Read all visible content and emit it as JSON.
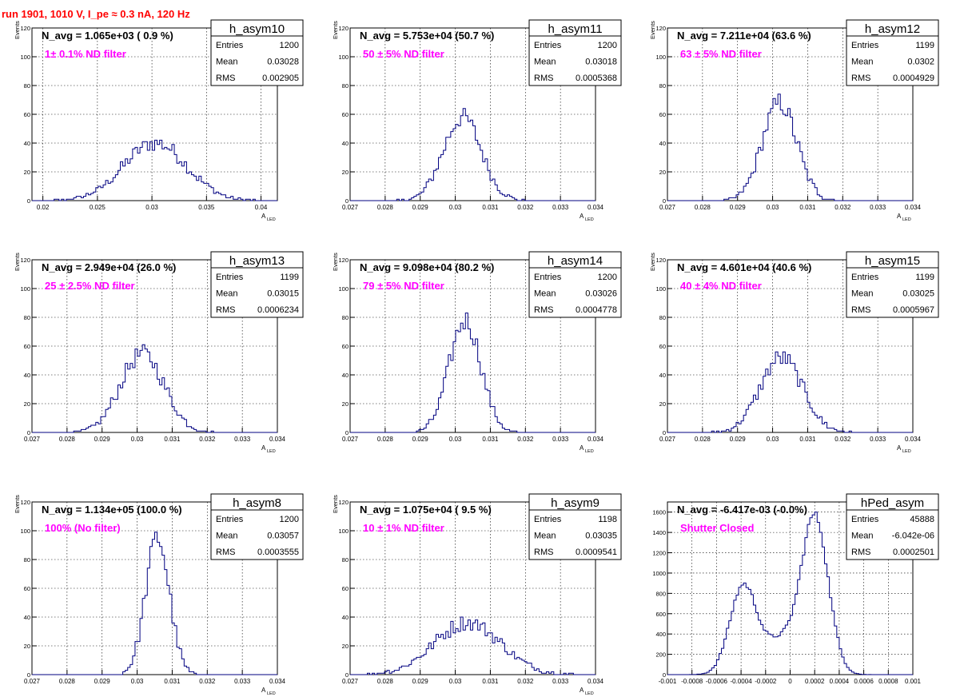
{
  "title": "run 1901,  1010 V, I_pe ≈ 0.3 nA, 120 Hz",
  "colors": {
    "line": "#000080",
    "annotation": "#ff00ff",
    "title": "#ff0000",
    "grid": "#000000"
  },
  "chart_data": [
    {
      "type": "histogram",
      "name": "h_asym10",
      "navg": "N_avg = 1.065e+03 ( 0.9 %)",
      "filter": "1± 0.1% ND filter",
      "stats": [
        {
          "label": "Entries",
          "value": "1200"
        },
        {
          "label": "Mean",
          "value": "0.03028"
        },
        {
          "label": "RMS",
          "value": "0.002905"
        }
      ],
      "ylabel": "Events",
      "xlabel": "A",
      "xlabel_sub": "LED",
      "xlim": [
        0.019,
        0.0415
      ],
      "ylim": [
        0,
        120
      ],
      "xticks": [
        "0.02",
        "0.025",
        "0.03",
        "0.035",
        "0.04"
      ],
      "xtick_vals": [
        0.02,
        0.025,
        0.03,
        0.035,
        0.04
      ],
      "yticks": [
        "0",
        "20",
        "40",
        "60",
        "80",
        "100",
        "120"
      ],
      "yshow": [
        20,
        40,
        60,
        80,
        100,
        120
      ],
      "dist": [
        {
          "mu": 0.0303,
          "s": 0.0029,
          "a": 40
        }
      ]
    },
    {
      "type": "histogram",
      "name": "h_asym11",
      "navg": "N_avg = 5.753e+04 (50.7 %)",
      "filter": "50 ± 5% ND filter",
      "stats": [
        {
          "label": "Entries",
          "value": "1200"
        },
        {
          "label": "Mean",
          "value": "0.03018"
        },
        {
          "label": "RMS",
          "value": "0.0005368"
        }
      ],
      "ylabel": "Events",
      "xlabel": "A",
      "xlabel_sub": "LED",
      "xlim": [
        0.027,
        0.034
      ],
      "ylim": [
        0,
        120
      ],
      "xticks": [
        "0.027",
        "0.028",
        "0.029",
        "0.03",
        "0.031",
        "0.032",
        "0.033",
        "0.034"
      ],
      "xtick_vals": [
        0.027,
        0.028,
        0.029,
        0.03,
        0.031,
        0.032,
        0.033,
        0.034
      ],
      "yticks": [
        "0",
        "20",
        "40",
        "60",
        "80",
        "100",
        "120"
      ],
      "yshow": [
        20,
        40,
        60,
        80,
        100,
        120
      ],
      "dist": [
        {
          "mu": 0.0302,
          "s": 0.00054,
          "a": 58
        }
      ]
    },
    {
      "type": "histogram",
      "name": "h_asym12",
      "navg": "N_avg = 7.211e+04 (63.6 %)",
      "filter": "63 ± 5% ND filter",
      "stats": [
        {
          "label": "Entries",
          "value": "1199"
        },
        {
          "label": "Mean",
          "value": "0.0302"
        },
        {
          "label": "RMS",
          "value": "0.0004929"
        }
      ],
      "ylabel": "Events",
      "xlabel": "A",
      "xlabel_sub": "LED",
      "xlim": [
        0.027,
        0.034
      ],
      "ylim": [
        0,
        120
      ],
      "xticks": [
        "0.027",
        "0.028",
        "0.029",
        "0.03",
        "0.031",
        "0.032",
        "0.033",
        "0.034"
      ],
      "xtick_vals": [
        0.027,
        0.028,
        0.029,
        0.03,
        0.031,
        0.032,
        0.033,
        0.034
      ],
      "yticks": [
        "0",
        "20",
        "40",
        "60",
        "80",
        "100",
        "120"
      ],
      "yshow": [
        20,
        40,
        60,
        80,
        100,
        120
      ],
      "dist": [
        {
          "mu": 0.0302,
          "s": 0.00049,
          "a": 68
        }
      ]
    },
    {
      "type": "histogram",
      "name": "h_asym13",
      "navg": "N_avg = 2.949e+04 (26.0 %)",
      "filter": "25 ± 2.5% ND filter",
      "stats": [
        {
          "label": "Entries",
          "value": "1199"
        },
        {
          "label": "Mean",
          "value": "0.03015"
        },
        {
          "label": "RMS",
          "value": "0.0006234"
        }
      ],
      "ylabel": "Events",
      "xlabel": "A",
      "xlabel_sub": "LED",
      "xlim": [
        0.027,
        0.034
      ],
      "ylim": [
        0,
        120
      ],
      "xticks": [
        "0.027",
        "0.028",
        "0.029",
        "0.03",
        "0.031",
        "0.032",
        "0.033",
        "0.034"
      ],
      "xtick_vals": [
        0.027,
        0.028,
        0.029,
        0.03,
        0.031,
        0.032,
        0.033,
        0.034
      ],
      "yticks": [
        "0",
        "20",
        "40",
        "60",
        "80",
        "100",
        "120"
      ],
      "yshow": [
        20,
        40,
        60,
        80,
        100,
        120
      ],
      "dist": [
        {
          "mu": 0.03015,
          "s": 0.00062,
          "a": 55
        }
      ]
    },
    {
      "type": "histogram",
      "name": "h_asym14",
      "navg": "N_avg = 9.098e+04 (80.2 %)",
      "filter": "79 ± 5% ND filter",
      "stats": [
        {
          "label": "Entries",
          "value": "1200"
        },
        {
          "label": "Mean",
          "value": "0.03026"
        },
        {
          "label": "RMS",
          "value": "0.0004778"
        }
      ],
      "ylabel": "Events",
      "xlabel": "A",
      "xlabel_sub": "LED",
      "xlim": [
        0.027,
        0.034
      ],
      "ylim": [
        0,
        120
      ],
      "xticks": [
        "0.027",
        "0.028",
        "0.029",
        "0.03",
        "0.031",
        "0.032",
        "0.033",
        "0.034"
      ],
      "xtick_vals": [
        0.027,
        0.028,
        0.029,
        0.03,
        0.031,
        0.032,
        0.033,
        0.034
      ],
      "yticks": [
        "0",
        "20",
        "40",
        "60",
        "80",
        "100",
        "120"
      ],
      "yshow": [
        20,
        40,
        60,
        80,
        100,
        120
      ],
      "dist": [
        {
          "mu": 0.03028,
          "s": 0.00045,
          "a": 78
        }
      ]
    },
    {
      "type": "histogram",
      "name": "h_asym15",
      "navg": "N_avg = 4.601e+04 (40.6 %)",
      "filter": "40 ± 4% ND filter",
      "stats": [
        {
          "label": "Entries",
          "value": "1199"
        },
        {
          "label": "Mean",
          "value": "0.03025"
        },
        {
          "label": "RMS",
          "value": "0.0005967"
        }
      ],
      "ylabel": "Events",
      "xlabel": "A",
      "xlabel_sub": "LED",
      "xlim": [
        0.027,
        0.034
      ],
      "ylim": [
        0,
        120
      ],
      "xticks": [
        "0.027",
        "0.028",
        "0.029",
        "0.03",
        "0.031",
        "0.032",
        "0.033",
        "0.034"
      ],
      "xtick_vals": [
        0.027,
        0.028,
        0.029,
        0.03,
        0.031,
        0.032,
        0.033,
        0.034
      ],
      "yticks": [
        "0",
        "20",
        "40",
        "60",
        "80",
        "100",
        "120"
      ],
      "yshow": [
        20,
        40,
        60,
        80,
        100,
        120
      ],
      "dist": [
        {
          "mu": 0.03025,
          "s": 0.0006,
          "a": 52
        }
      ]
    },
    {
      "type": "histogram",
      "name": "h_asym8",
      "navg": "N_avg = 1.134e+05 (100.0 %)",
      "filter": "100% (No filter)",
      "stats": [
        {
          "label": "Entries",
          "value": "1200"
        },
        {
          "label": "Mean",
          "value": "0.03057"
        },
        {
          "label": "RMS",
          "value": "0.0003555"
        }
      ],
      "ylabel": "Events",
      "xlabel": "A",
      "xlabel_sub": "LED",
      "xlim": [
        0.027,
        0.034
      ],
      "ylim": [
        0,
        120
      ],
      "xticks": [
        "0.027",
        "0.028",
        "0.029",
        "0.03",
        "0.031",
        "0.032",
        "0.033",
        "0.034"
      ],
      "xtick_vals": [
        0.027,
        0.028,
        0.029,
        0.03,
        0.031,
        0.032,
        0.033,
        0.034
      ],
      "yticks": [
        "0",
        "20",
        "40",
        "60",
        "80",
        "100",
        "120"
      ],
      "yshow": [
        20,
        40,
        60,
        80,
        100,
        120
      ],
      "dist": [
        {
          "mu": 0.03058,
          "s": 0.00034,
          "a": 95
        }
      ]
    },
    {
      "type": "histogram",
      "name": "h_asym9",
      "navg": "N_avg = 1.075e+04 ( 9.5 %)",
      "filter": "10 ± 1% ND filter",
      "stats": [
        {
          "label": "Entries",
          "value": "1198"
        },
        {
          "label": "Mean",
          "value": "0.03035"
        },
        {
          "label": "RMS",
          "value": "0.0009541"
        }
      ],
      "ylabel": "Events",
      "xlabel": "A",
      "xlabel_sub": "LED",
      "xlim": [
        0.027,
        0.034
      ],
      "ylim": [
        0,
        120
      ],
      "xticks": [
        "0.027",
        "0.028",
        "0.029",
        "0.03",
        "0.031",
        "0.032",
        "0.033",
        "0.034"
      ],
      "xtick_vals": [
        0.027,
        0.028,
        0.029,
        0.03,
        0.031,
        0.032,
        0.033,
        0.034
      ],
      "yticks": [
        "0",
        "20",
        "40",
        "60",
        "80",
        "100",
        "120"
      ],
      "yshow": [
        20,
        40,
        60,
        80,
        100,
        120
      ],
      "dist": [
        {
          "mu": 0.03035,
          "s": 0.00095,
          "a": 36
        }
      ]
    },
    {
      "type": "histogram",
      "name": "hPed_asym",
      "navg": "N_avg = -6.417e-03 (-0.0%)",
      "filter": "Shutter Closed",
      "stats": [
        {
          "label": "Entries",
          "value": "45888"
        },
        {
          "label": "Mean",
          "value": "-6.042e-06"
        },
        {
          "label": "RMS",
          "value": "0.0002501"
        }
      ],
      "ylabel": "",
      "xlabel": "",
      "xlabel_sub": "",
      "xlim": [
        -0.001,
        0.001
      ],
      "ylim": [
        0,
        1700
      ],
      "xticks": [
        "-0.001",
        "-0.0008",
        "-0.0006",
        "-0.0004",
        "-0.0002",
        "0",
        "0.0002",
        "0.0004",
        "0.0006",
        "0.0008",
        "0.001"
      ],
      "xtick_vals": [
        -0.001,
        -0.0008,
        -0.0006,
        -0.0004,
        -0.0002,
        0,
        0.0002,
        0.0004,
        0.0006,
        0.0008,
        0.001
      ],
      "yticks": [
        "0",
        "200",
        "400",
        "600",
        "800",
        "1000",
        "1200",
        "1400",
        "1600"
      ],
      "yshow": [
        200,
        400,
        600,
        800,
        1000,
        1200,
        1400,
        1600
      ],
      "dist": [
        {
          "mu": -0.00038,
          "s": 0.00011,
          "a": 880
        },
        {
          "mu": 0.0002,
          "s": 0.00011,
          "a": 1560
        },
        {
          "mu": -8e-05,
          "s": 0.00012,
          "a": 320
        }
      ]
    }
  ]
}
